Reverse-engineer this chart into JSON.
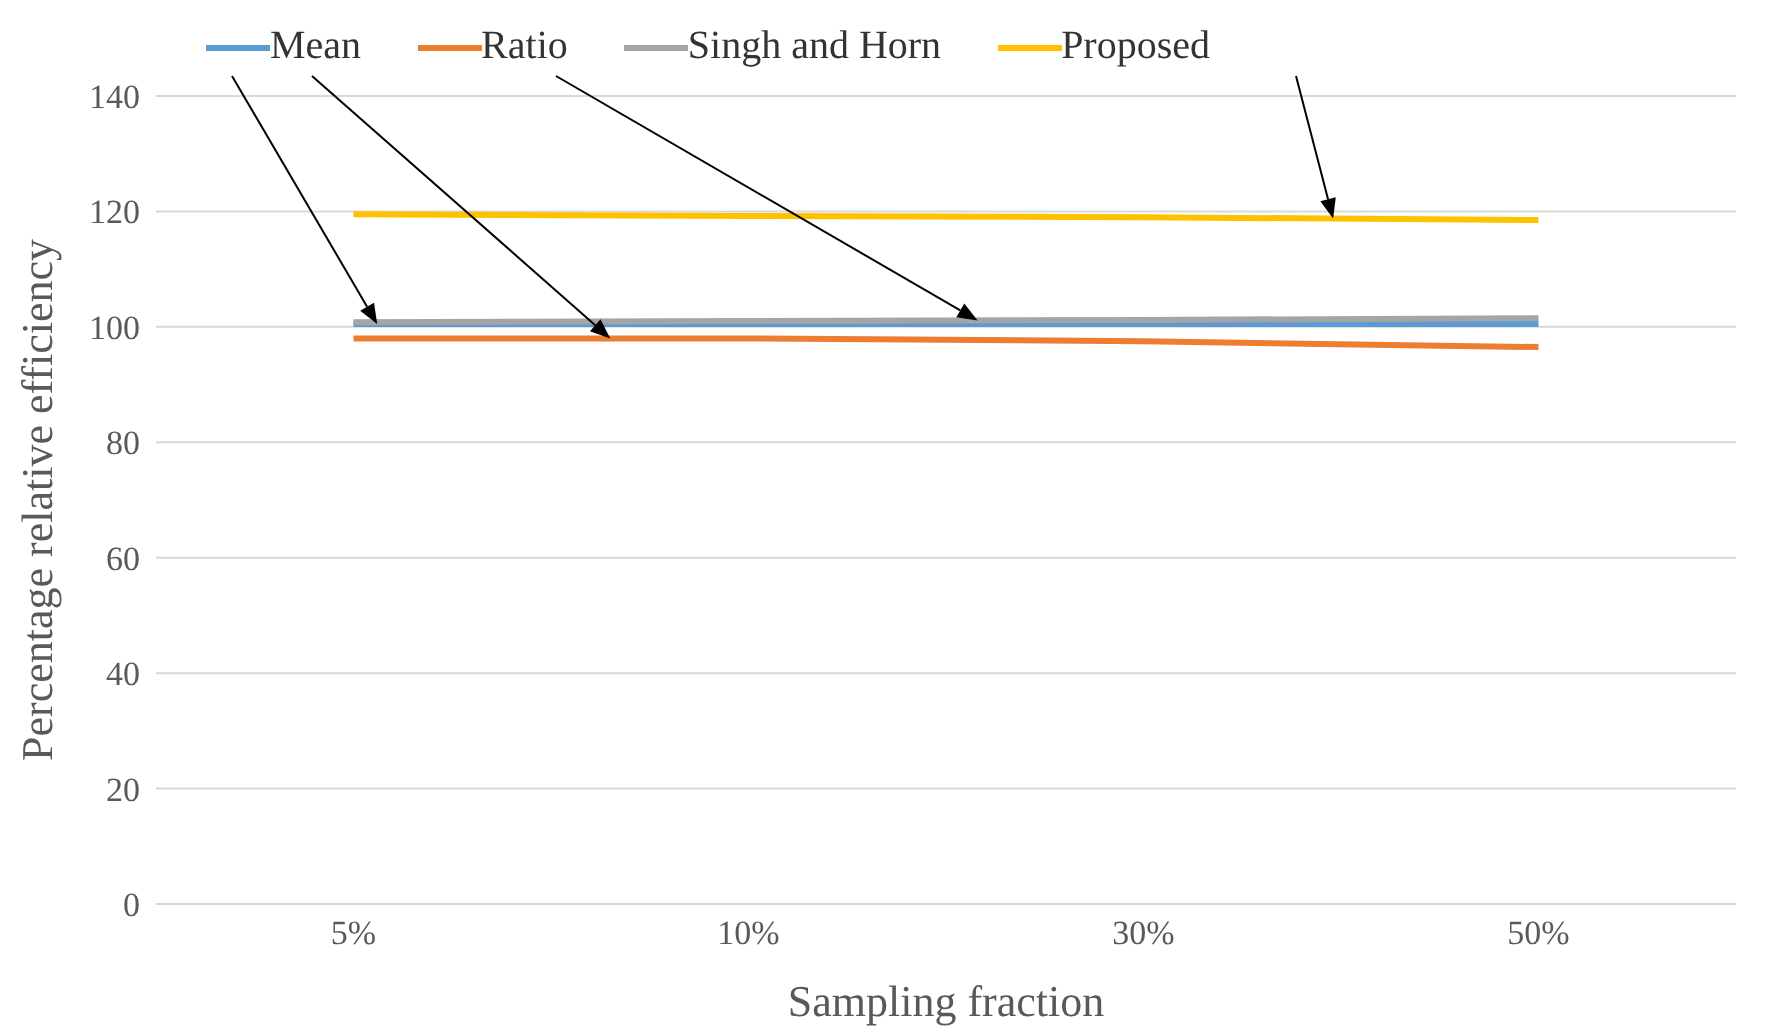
{
  "chart_data": {
    "type": "line",
    "xlabel": "Sampling fraction",
    "ylabel": "Percentage relative efficiency",
    "categories": [
      "5%",
      "10%",
      "30%",
      "50%"
    ],
    "series": [
      {
        "name": "Mean",
        "color": "#5b9bd5",
        "values": [
          100.5,
          100.5,
          100.5,
          100.5
        ]
      },
      {
        "name": "Ratio",
        "color": "#ed7d31",
        "values": [
          98,
          98,
          97.5,
          96.5
        ]
      },
      {
        "name": "Singh and Horn",
        "color": "#a5a5a5",
        "values": [
          100.8,
          101,
          101.2,
          101.5
        ]
      },
      {
        "name": "Proposed",
        "color": "#ffc000",
        "values": [
          119.5,
          119.2,
          119,
          118.5
        ]
      }
    ],
    "ylim": [
      0,
      140
    ],
    "yticks": [
      0,
      20,
      40,
      60,
      80,
      100,
      120,
      140
    ],
    "grid": "y",
    "legend": "top",
    "marker": "none",
    "line_style": "solid"
  }
}
